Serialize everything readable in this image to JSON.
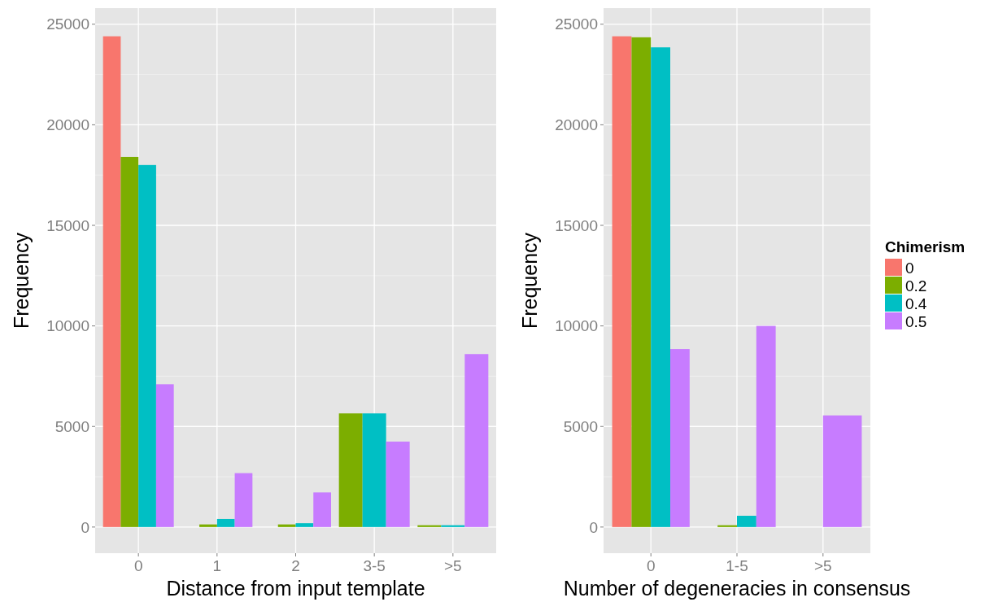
{
  "chart_data": [
    {
      "type": "bar",
      "xlabel": "Distance from input template",
      "ylabel": "Frequency",
      "categories": [
        "0",
        "1",
        "2",
        "3-5",
        ">5"
      ],
      "ylim": [
        -1300,
        25800
      ],
      "yticks": [
        0,
        5000,
        10000,
        15000,
        20000,
        25000
      ],
      "grid": true,
      "legend": false,
      "series": [
        {
          "color": "#f8766d",
          "values": [
            24400,
            0,
            0,
            null,
            null
          ]
        },
        {
          "color": "#7cae00",
          "values": [
            18400,
            130,
            130,
            5650,
            90
          ]
        },
        {
          "color": "#00bfc4",
          "values": [
            18000,
            400,
            190,
            5650,
            90
          ]
        },
        {
          "color": "#c77cff",
          "values": [
            7100,
            2680,
            1720,
            4250,
            8600
          ]
        }
      ]
    },
    {
      "type": "bar",
      "xlabel": "Number of degeneracies in consensus",
      "ylabel": "Frequency",
      "legend_title": "Chimerism",
      "categories": [
        "0",
        "1-5",
        ">5"
      ],
      "ylim": [
        -1300,
        25800
      ],
      "yticks": [
        0,
        5000,
        10000,
        15000,
        20000,
        25000
      ],
      "grid": true,
      "legend": "right",
      "series": [
        {
          "name": "0",
          "color": "#f8766d",
          "values": [
            24400,
            0,
            null
          ]
        },
        {
          "name": "0.2",
          "color": "#7cae00",
          "values": [
            24350,
            90,
            null
          ]
        },
        {
          "name": "0.4",
          "color": "#00bfc4",
          "values": [
            23850,
            560,
            0
          ]
        },
        {
          "name": "0.5",
          "color": "#c77cff",
          "values": [
            8850,
            10000,
            5550
          ]
        }
      ]
    }
  ]
}
